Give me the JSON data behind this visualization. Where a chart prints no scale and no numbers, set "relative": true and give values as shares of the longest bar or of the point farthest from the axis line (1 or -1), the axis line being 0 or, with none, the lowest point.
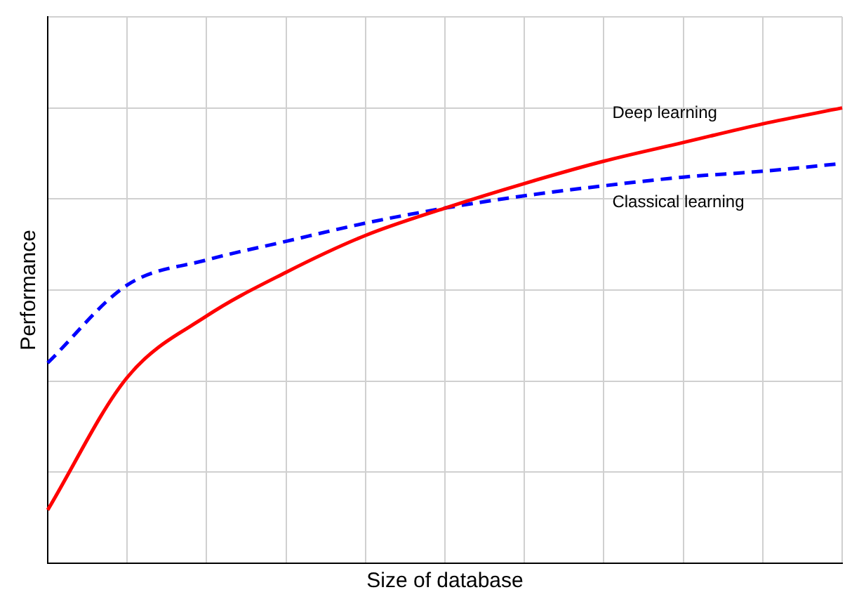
{
  "chart_data": {
    "type": "line",
    "xlabel": "Size of database",
    "ylabel": "Performance",
    "relative": true,
    "grid": true,
    "legend": false,
    "categories": [
      null,
      null,
      null,
      null,
      null,
      null,
      null,
      null,
      null,
      null,
      null
    ],
    "series": [
      {
        "name": "Deep learning",
        "color": "#ff0000",
        "line_style": "solid",
        "values": [
          0.117,
          0.408,
          0.543,
          0.639,
          0.72,
          0.78,
          0.834,
          0.883,
          0.924,
          0.965,
          1
        ]
      },
      {
        "name": "Classical learning",
        "color": "#0000ff",
        "line_style": "dashed",
        "values": [
          0.44,
          0.611,
          0.666,
          0.707,
          0.747,
          0.78,
          0.807,
          0.829,
          0.848,
          0.861,
          0.878
        ]
      }
    ]
  }
}
